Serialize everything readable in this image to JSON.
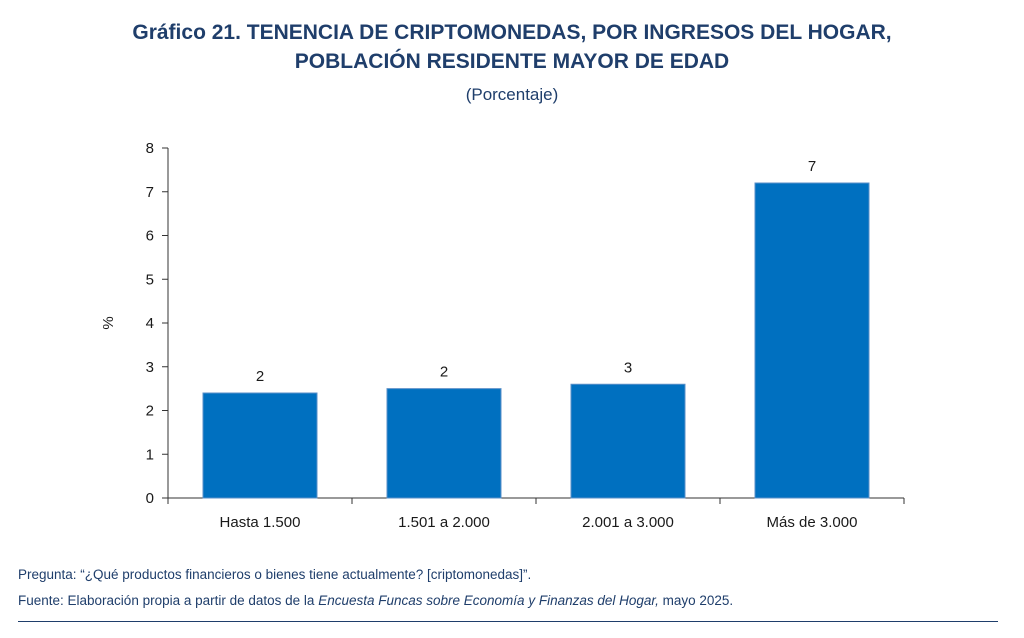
{
  "title_line1": "Gráfico 21. TENENCIA DE CRIPTOMONEDAS, POR INGRESOS DEL HOGAR,",
  "title_line2": "POBLACIÓN RESIDENTE MAYOR DE EDAD",
  "subtitle": "(Porcentaje)",
  "notes": {
    "question": "Pregunta: “¿Qué productos financieros o bienes tiene actualmente? [criptomonedas]”.",
    "source_prefix": "Fuente: Elaboración propia a partir de datos de la ",
    "source_italic": "Encuesta Funcas sobre Economía y Finanzas del Hogar,",
    "source_suffix": " mayo 2025."
  },
  "chart_data": {
    "type": "bar",
    "categories": [
      "Hasta 1.500",
      "1.501 a 2.000",
      "2.001 a 3.000",
      "Más de 3.000"
    ],
    "values": [
      2.4,
      2.5,
      2.6,
      7.2
    ],
    "data_labels": [
      "2",
      "2",
      "3",
      "7"
    ],
    "ylabel": "%",
    "ylim": [
      0,
      8
    ],
    "yticks": [
      0,
      1,
      2,
      3,
      4,
      5,
      6,
      7,
      8
    ],
    "bar_color": "#0070c0",
    "grid": false
  }
}
